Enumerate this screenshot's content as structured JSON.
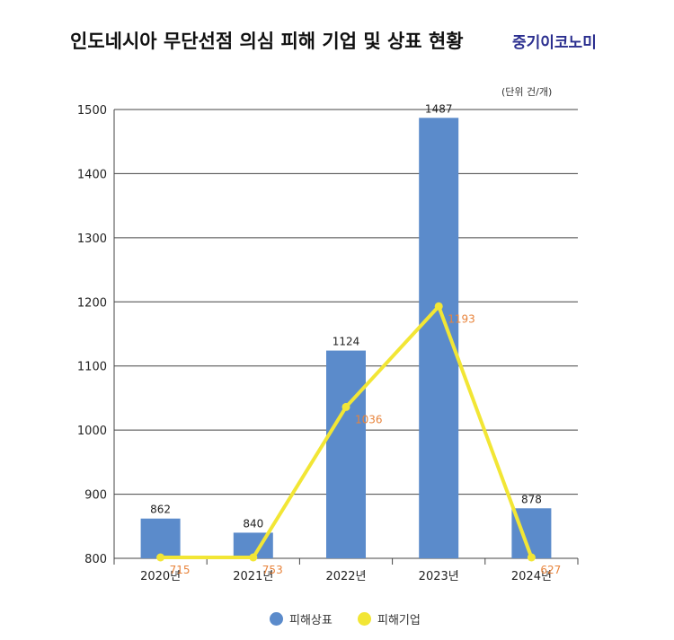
{
  "header": {
    "title": "인도네시아 무단선점 의심 피해 기업 및 상표 현황",
    "brand": "중기이코노미",
    "unit": "(단위 건/개)"
  },
  "colors": {
    "bar": "#5b8bcb",
    "line": "#f2e635",
    "line_label": "#e8843c",
    "grid": "#444444",
    "text": "#222222"
  },
  "chart_data": {
    "type": "bar",
    "categories": [
      "2020년",
      "2021년",
      "2022년",
      "2023년",
      "2024년"
    ],
    "series": [
      {
        "name": "피해상표",
        "type": "bar",
        "values": [
          862,
          840,
          1124,
          1487,
          878
        ]
      },
      {
        "name": "피해기업",
        "type": "line",
        "values": [
          715,
          753,
          1036,
          1193,
          627
        ]
      }
    ],
    "y_ticks": [
      "800",
      "900",
      "1000",
      "1100",
      "1200",
      "1300",
      "1400",
      "1500"
    ],
    "ylim": [
      800,
      1500
    ],
    "grid": true,
    "legend": "bottom-center"
  }
}
